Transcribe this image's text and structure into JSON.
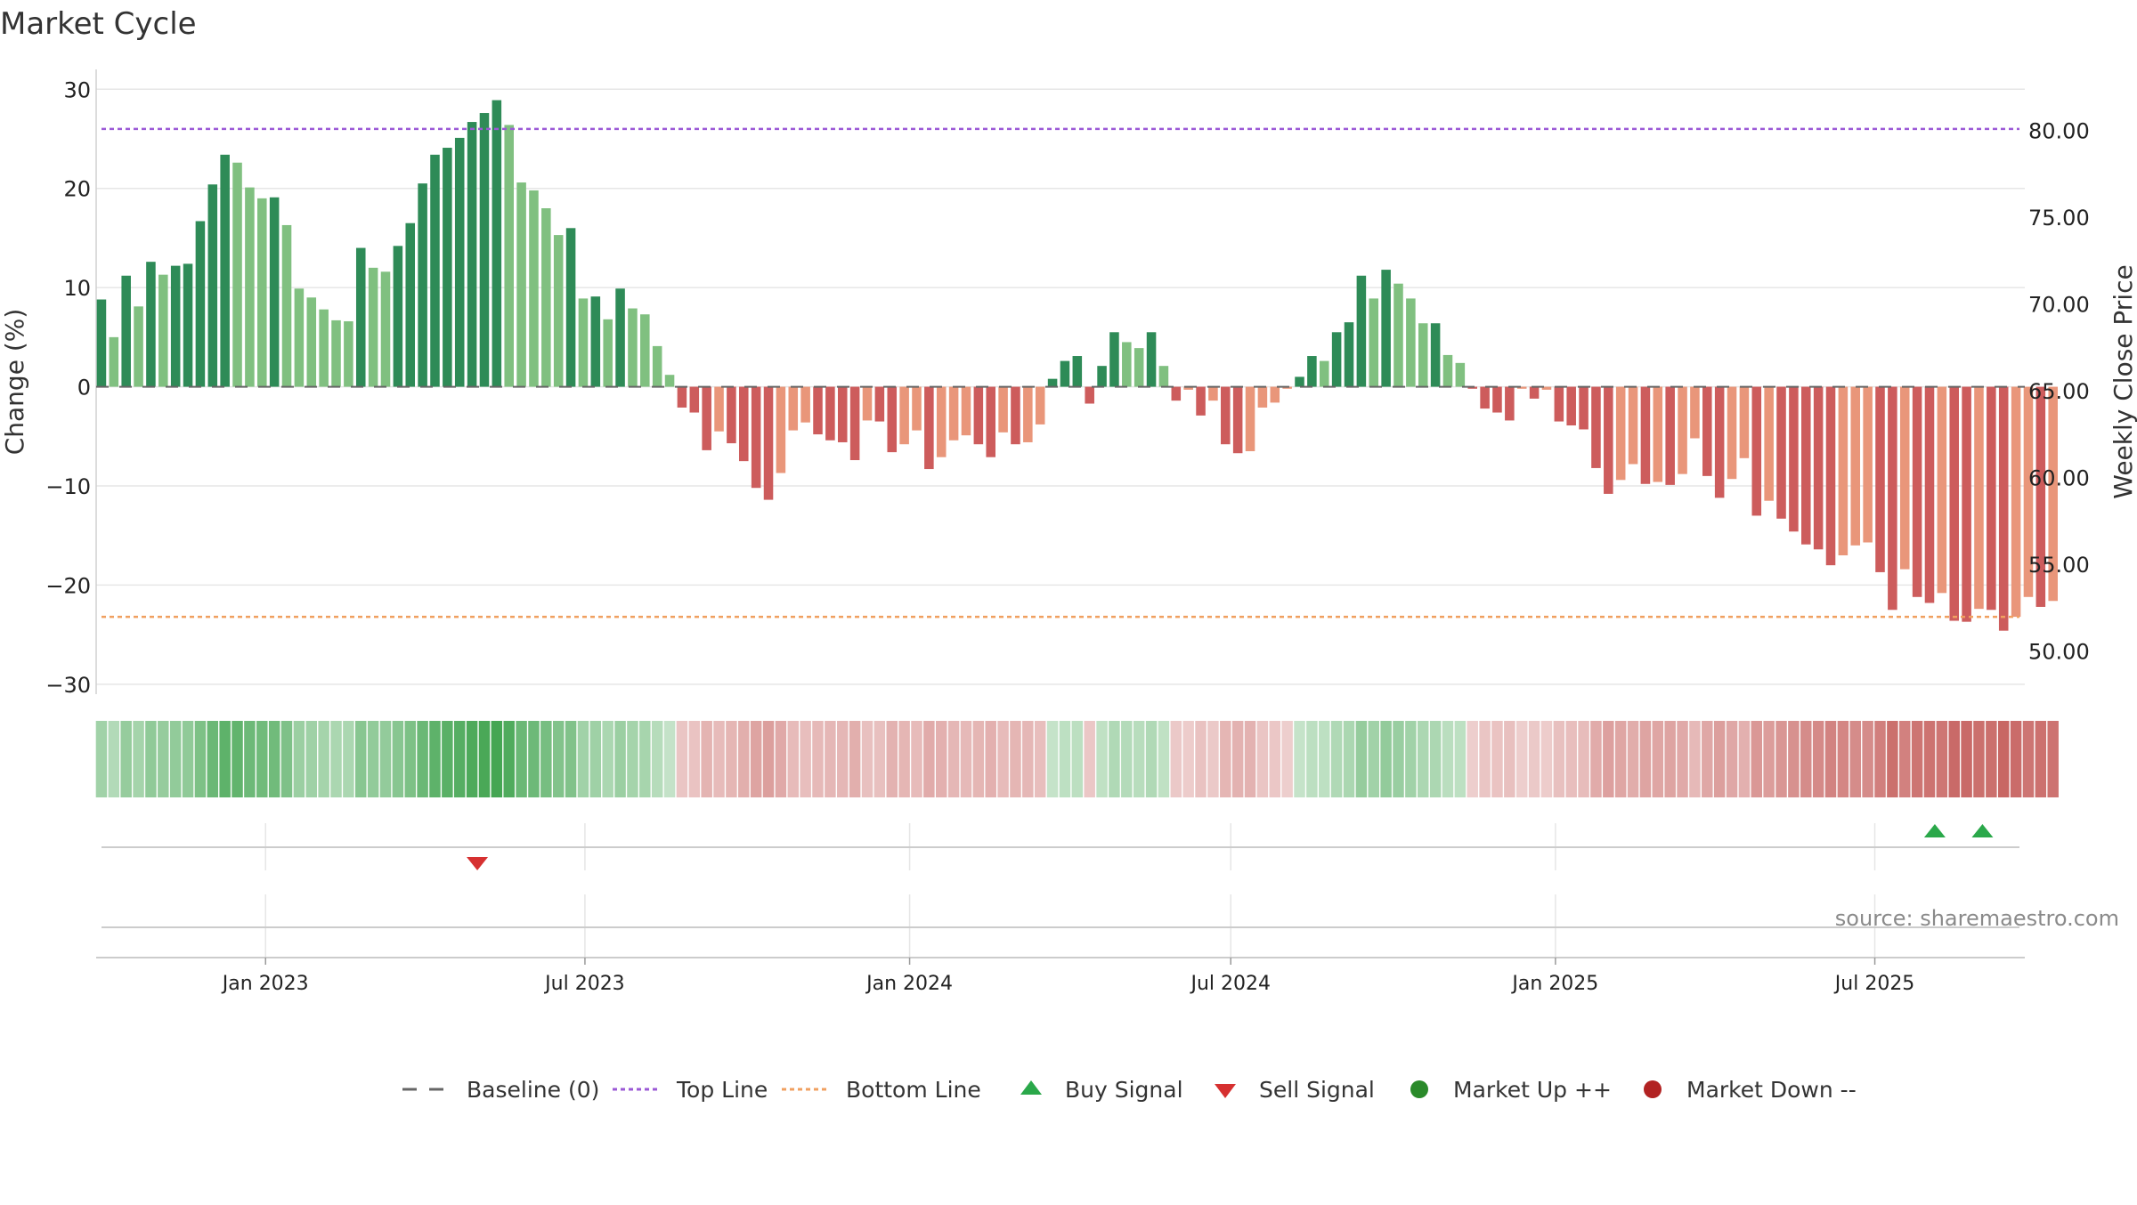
{
  "chart_data": {
    "type": "bar",
    "title": "Market Cycle",
    "ylabel_left": "Change (%)",
    "ylabel_right": "Weekly Close Price",
    "ylim_left": [
      -31,
      32
    ],
    "ylim_right": [
      47.5,
      83.5
    ],
    "yticks_left": [
      30,
      20,
      10,
      0,
      -10,
      -20,
      -30
    ],
    "yticks_left_labels": [
      "30",
      "20",
      "10",
      "0",
      "−10",
      "−20",
      "−30"
    ],
    "yticks_right": [
      80,
      75,
      70,
      65,
      60,
      55,
      50
    ],
    "yticks_right_labels": [
      "80.00",
      "75.00",
      "70.00",
      "65.00",
      "60.00",
      "55.00",
      "50.00"
    ],
    "x_range": [
      "2022-09-27",
      "2025-09-24"
    ],
    "x_ticks": [
      "2023-01-01",
      "2023-07-01",
      "2024-01-01",
      "2024-07-01",
      "2025-01-01",
      "2025-07-01"
    ],
    "x_tick_labels": [
      "Jan 2023",
      "Jul 2023",
      "Jan 2024",
      "Jul 2024",
      "Jan 2025",
      "Jul 2025"
    ],
    "grid": true,
    "top_line": 26,
    "bottom_line": -23.2,
    "baseline": 0,
    "series": [
      {
        "name": "Change (%)",
        "week_start": "2022-09-30",
        "values": [
          8.8,
          5,
          11.2,
          8.1,
          12.6,
          11.3,
          12.2,
          12.4,
          16.7,
          20.4,
          23.4,
          22.6,
          20.1,
          19,
          19.1,
          16.3,
          9.9,
          9,
          7.8,
          6.7,
          6.6,
          14,
          12,
          11.6,
          14.2,
          16.5,
          20.5,
          23.4,
          24.1,
          25.1,
          26.7,
          27.6,
          28.9,
          26.4,
          20.6,
          19.8,
          18,
          15.3,
          16,
          8.9,
          9.1,
          6.8,
          9.9,
          7.9,
          7.3,
          4.1,
          1.2,
          -2.1,
          -2.6,
          -6.4,
          -4.5,
          -5.7,
          -7.5,
          -10.2,
          -11.4,
          -8.7,
          -4.4,
          -3.6,
          -4.8,
          -5.4,
          -5.6,
          -7.4,
          -3.4,
          -3.5,
          -6.6,
          -5.8,
          -4.4,
          -8.3,
          -7.1,
          -5.4,
          -4.9,
          -5.8,
          -7.1,
          -4.6,
          -5.8,
          -5.6,
          -3.8,
          0.8,
          2.6,
          3.1,
          -1.7,
          2.1,
          5.5,
          4.5,
          3.9,
          5.5,
          2.1,
          -1.4,
          -0.3,
          -2.9,
          -1.4,
          -5.8,
          -6.7,
          -6.5,
          -2.1,
          -1.6,
          -0.2,
          1,
          3.1,
          2.6,
          5.5,
          6.5,
          11.2,
          8.9,
          11.8,
          10.4,
          8.9,
          6.4,
          6.4,
          3.2,
          2.4,
          -0.2,
          -2.2,
          -2.6,
          -3.4,
          -0.2,
          -1.2,
          -0.3,
          -3.5,
          -3.9,
          -4.3,
          -8.2,
          -10.8,
          -9.4,
          -7.8,
          -9.8,
          -9.6,
          -9.9,
          -8.8,
          -5.2,
          -9,
          -11.2,
          -9.3,
          -7.2,
          -13,
          -11.5,
          -13.3,
          -14.6,
          -15.9,
          -16.4,
          -18,
          -17,
          -16,
          -15.7,
          -18.7,
          -22.5,
          -18.4,
          -21.2,
          -21.8,
          -20.8,
          -23.6,
          -23.7,
          -22.4,
          -22.5,
          -24.6,
          -23.2,
          -21.2,
          -22.2,
          -21.6
        ]
      }
    ],
    "signals": {
      "buy": [
        "2025-08-04",
        "2025-08-31"
      ],
      "sell": [
        "2023-05-01"
      ]
    },
    "legend_placement": "bottom-center",
    "legend": [
      {
        "key": "baseline",
        "label": "Baseline (0)",
        "color": "#666666"
      },
      {
        "key": "top",
        "label": "Top Line",
        "color": "#9b59d6"
      },
      {
        "key": "bottom",
        "label": "Bottom Line",
        "color": "#f0a060"
      },
      {
        "key": "buy",
        "label": "Buy Signal",
        "color": "#2aa84a"
      },
      {
        "key": "sell",
        "label": "Sell Signal",
        "color": "#d63030"
      },
      {
        "key": "up",
        "label": "Market Up ++",
        "color": "#2a8a2a"
      },
      {
        "key": "down",
        "label": "Market Down --",
        "color": "#b22222"
      }
    ],
    "source": "source: sharemaestro.com"
  },
  "colors": {
    "pos_strong": "#2e8b57",
    "pos_weak": "#80c080",
    "neg_strong": "#cd5c5c",
    "neg_weak": "#e9967a",
    "heat_green": "#3fa34d",
    "heat_red": "#c0504d",
    "grid": "#e6e6e6",
    "text": "#222222"
  }
}
